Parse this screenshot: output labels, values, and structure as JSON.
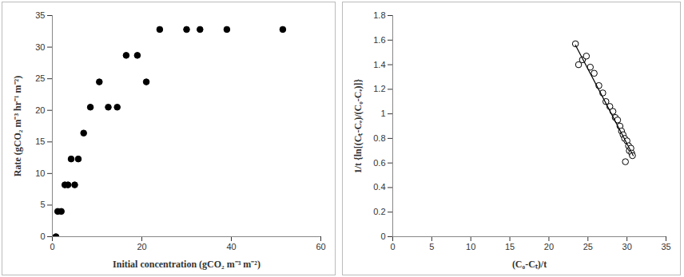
{
  "chart_data": [
    {
      "type": "scatter",
      "xlabel": "Initial concentration (gCO₂ m⁻³ m⁻²)",
      "ylabel": "Rate (gCO₂ m⁻³ hr⁻¹ m⁻²)",
      "x": [
        0.8,
        1.2,
        2,
        2.8,
        3.5,
        4.2,
        5,
        5.8,
        7,
        8.5,
        10.5,
        12.5,
        14.5,
        16.5,
        19,
        21,
        24,
        30,
        33,
        39,
        51.5
      ],
      "values": [
        0,
        4,
        4,
        8.2,
        8.2,
        12.3,
        8.2,
        12.3,
        16.4,
        20.5,
        24.5,
        20.5,
        20.5,
        28.7,
        28.7,
        24.5,
        32.8,
        32.8,
        32.8,
        32.8,
        32.8
      ],
      "color": "#000000",
      "marker": "circle",
      "xlim": [
        0,
        60
      ],
      "xticks": [
        0,
        20,
        40,
        60
      ],
      "ylim": [
        0,
        35
      ],
      "yticks": [
        0,
        5,
        10,
        15,
        20,
        25,
        30,
        35
      ],
      "grid": false
    },
    {
      "type": "scatter",
      "xlabel": "(C₀-Cₜ)/t",
      "ylabel": "1/t {ln[(Cₜ-Cₑ)/(C₀-Cₑ)]}",
      "series": [
        {
          "type": "scatter",
          "marker": "circle-open",
          "color": "#000000",
          "x": [
            23.4,
            23.8,
            24.3,
            24.8,
            25.3,
            25.8,
            26.4,
            26.9,
            27.3,
            27.8,
            28.2,
            28.5,
            28.8,
            29.1,
            29.3,
            29.5,
            29.7,
            29.8,
            30.0,
            30.2,
            30.3,
            30.5,
            30.6,
            30.7
          ],
          "values": [
            1.57,
            1.4,
            1.44,
            1.47,
            1.38,
            1.33,
            1.23,
            1.17,
            1.1,
            1.06,
            1.02,
            0.97,
            0.95,
            0.9,
            0.86,
            0.83,
            0.8,
            0.61,
            0.78,
            0.74,
            0.7,
            0.72,
            0.68,
            0.66
          ]
        },
        {
          "type": "line",
          "line_style": "solid",
          "color": "#000000",
          "x": [
            23.4,
            30.8
          ],
          "values": [
            1.56,
            0.66
          ]
        }
      ],
      "xlim": [
        0,
        35
      ],
      "xticks": [
        0,
        5,
        10,
        15,
        20,
        25,
        30,
        35
      ],
      "ylim": [
        0,
        1.8
      ],
      "yticks": [
        0,
        0.2,
        0.4,
        0.6,
        0.8,
        1,
        1.2,
        1.4,
        1.6,
        1.8
      ],
      "grid": false
    }
  ]
}
